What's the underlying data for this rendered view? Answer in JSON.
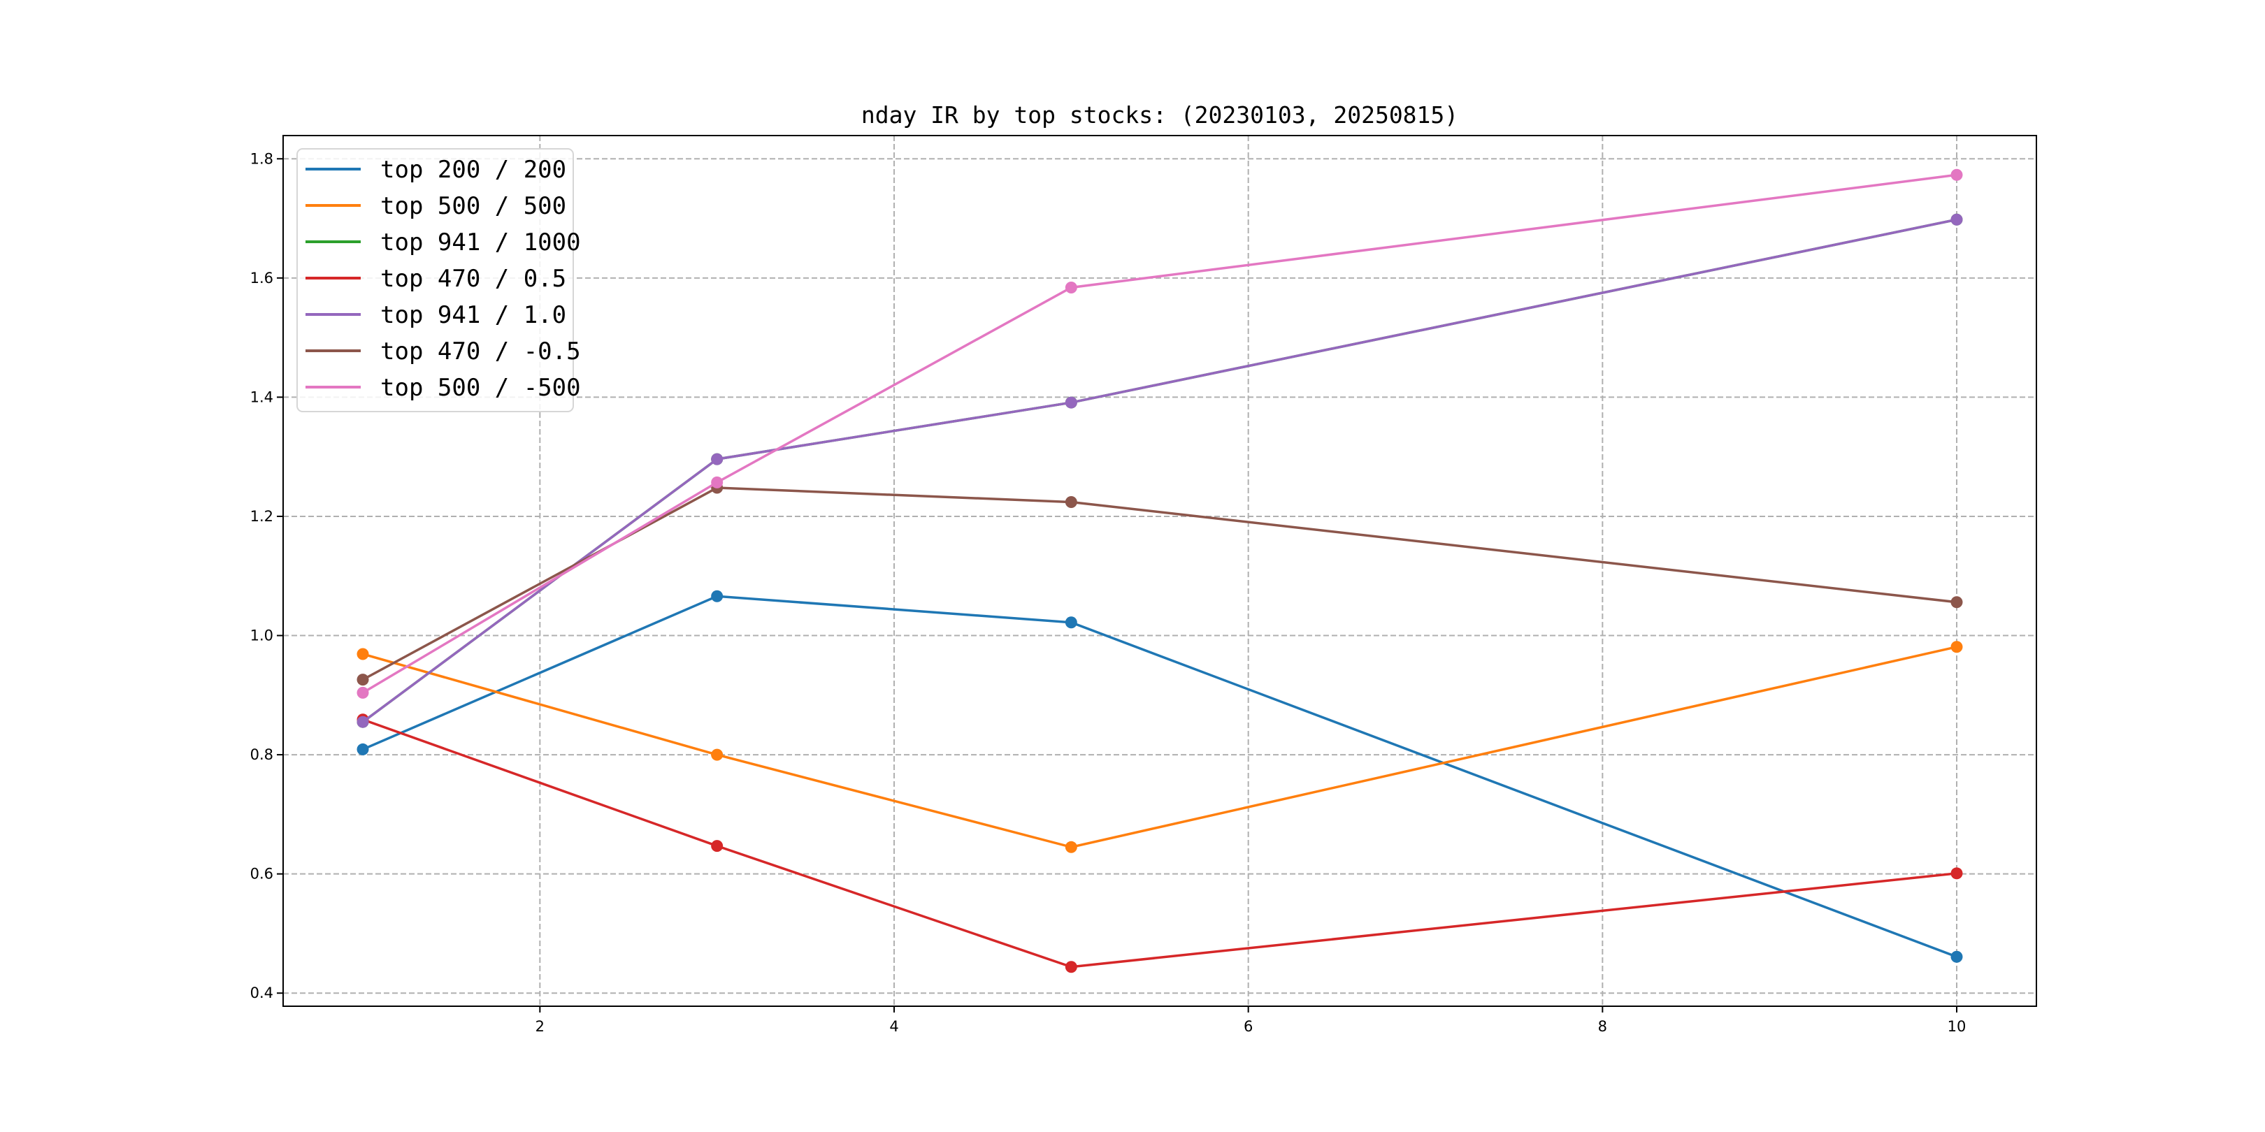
{
  "chart_data": {
    "type": "line",
    "title": "nday IR by top stocks: (20230103, 20250815)",
    "xlabel": "",
    "ylabel": "",
    "xlim": [
      0.55,
      10.45
    ],
    "ylim": [
      0.378,
      1.839
    ],
    "xticks": [
      2,
      4,
      6,
      8,
      10
    ],
    "xtick_labels": [
      "2",
      "4",
      "6",
      "8",
      "10"
    ],
    "yticks": [
      0.4,
      0.6,
      0.8,
      1.0,
      1.2,
      1.4,
      1.6,
      1.8
    ],
    "ytick_labels": [
      "0.4",
      "0.6",
      "0.8",
      "1.0",
      "1.2",
      "1.4",
      "1.6",
      "1.8"
    ],
    "grid": true,
    "legend_position": "top-left",
    "x": [
      1,
      3,
      5,
      10
    ],
    "series": [
      {
        "name": "top 200 / 200",
        "color": "#1f77b4",
        "values": [
          0.809,
          1.066,
          1.022,
          0.461
        ]
      },
      {
        "name": "top 500 / 500",
        "color": "#ff7f0e",
        "values": [
          0.969,
          0.8,
          0.645,
          0.981
        ]
      },
      {
        "name": "top 941 / 1000",
        "color": "#2ca02c",
        "values": [
          0.855,
          1.296,
          1.391,
          1.698
        ]
      },
      {
        "name": "top 470 / 0.5",
        "color": "#d62728",
        "values": [
          0.859,
          0.647,
          0.444,
          0.601
        ]
      },
      {
        "name": "top 941 / 1.0",
        "color": "#9467bd",
        "values": [
          0.855,
          1.296,
          1.391,
          1.698
        ]
      },
      {
        "name": "top 470 / -0.5",
        "color": "#8c564b",
        "values": [
          0.926,
          1.248,
          1.224,
          1.056
        ]
      },
      {
        "name": "top 500 / -500",
        "color": "#e377c2",
        "values": [
          0.904,
          1.257,
          1.584,
          1.773
        ]
      }
    ]
  }
}
